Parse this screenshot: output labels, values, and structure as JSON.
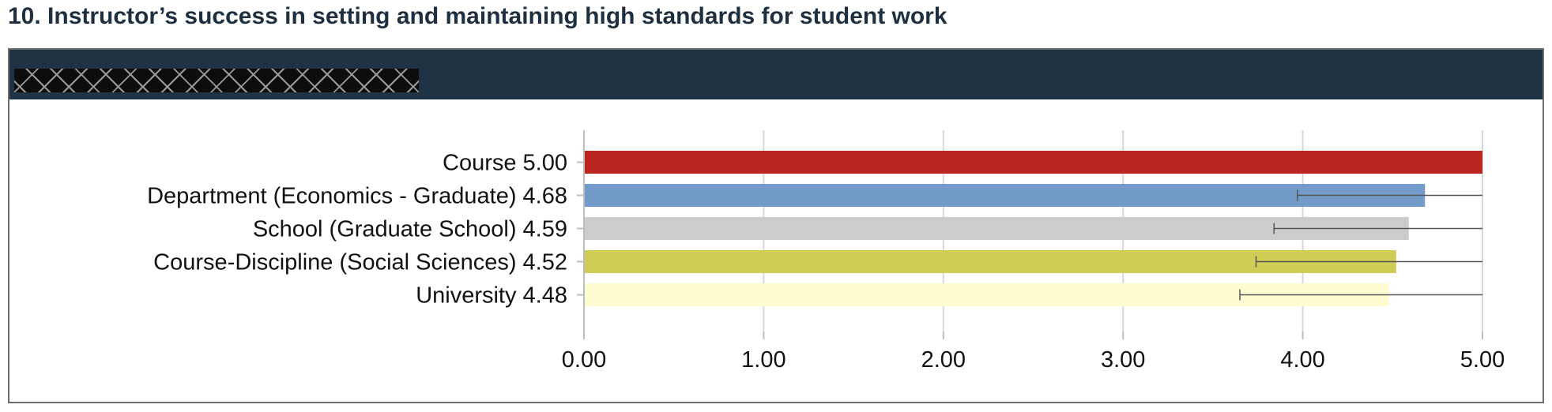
{
  "page": {
    "title": "10. Instructor’s success in setting and maintaining high standards for student work"
  },
  "chart_data": {
    "type": "bar",
    "orientation": "horizontal",
    "title": "",
    "xlabel": "",
    "ylabel": "",
    "xlim": [
      0,
      5
    ],
    "ticks": [
      "0.00",
      "1.00",
      "2.00",
      "3.00",
      "4.00",
      "5.00"
    ],
    "tick_values": [
      0,
      1,
      2,
      3,
      4,
      5
    ],
    "grid": "vertical",
    "bars": [
      {
        "label": "Course 5.00",
        "value": 5.0,
        "color": "#bb2621",
        "error_low": null,
        "error_high": null
      },
      {
        "label": "Department (Economics - Graduate) 4.68",
        "value": 4.68,
        "color": "#739bc9",
        "error_low": 3.97,
        "error_high": 5.0
      },
      {
        "label": "School (Graduate School) 4.59",
        "value": 4.59,
        "color": "#cccccc",
        "error_low": 3.84,
        "error_high": 5.0
      },
      {
        "label": "Course-Discipline (Social Sciences) 4.52",
        "value": 4.52,
        "color": "#cfcd55",
        "error_low": 3.74,
        "error_high": 5.0
      },
      {
        "label": "University 4.48",
        "value": 4.48,
        "color": "#fdfdd1",
        "error_low": 3.65,
        "error_high": 5.0
      }
    ]
  }
}
